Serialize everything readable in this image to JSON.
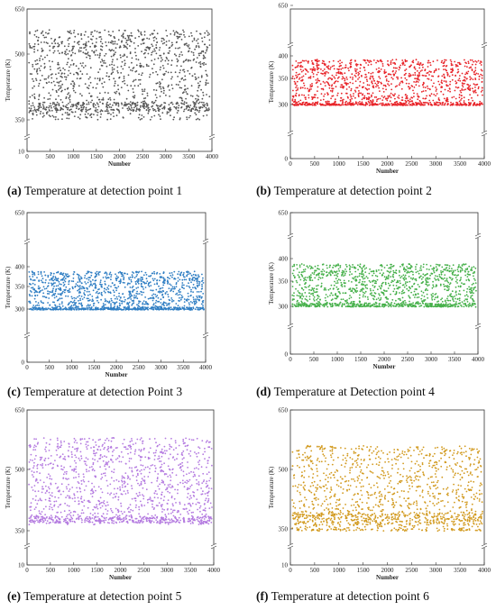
{
  "chart_data": [
    {
      "type": "scatter",
      "label": "(a)",
      "caption": "Temperature at detection point 1",
      "xlabel": "Number",
      "ylabel": "Temperature (K)",
      "xlim": [
        0,
        4000
      ],
      "xticks": [
        "0",
        "500",
        "1000",
        "1500",
        "2000",
        "2500",
        "3000",
        "3500",
        "4000"
      ],
      "yticks": [
        "10",
        "350",
        "500",
        "650"
      ],
      "y_axis_break": true,
      "color": "#555555",
      "series": [
        {
          "n_points": 4000,
          "value_band": [
            350,
            580
          ],
          "dense_band": [
            370,
            390
          ]
        }
      ]
    },
    {
      "type": "scatter",
      "label": "(b)",
      "caption": "Temperature at detection point 2",
      "xlabel": "Number",
      "ylabel": "Temperature (K)",
      "xlim": [
        0,
        4000
      ],
      "xticks": [
        "0",
        "500",
        "1000",
        "1500",
        "2000",
        "2500",
        "3000",
        "3500",
        "4000"
      ],
      "yticks": [
        "0",
        "300",
        "350",
        "400",
        "650"
      ],
      "y_axis_break": true,
      "color": "#e8252a",
      "series": [
        {
          "n_points": 4000,
          "value_band": [
            295,
            392
          ],
          "dense_band": [
            296,
            304
          ]
        }
      ]
    },
    {
      "type": "scatter",
      "label": "(c)",
      "caption": "Temperature at detection Point 3",
      "xlabel": "Number",
      "ylabel": "Temperature (K)",
      "xlim": [
        0,
        4000
      ],
      "xticks": [
        "0",
        "500",
        "1000",
        "1500",
        "2000",
        "2500",
        "3000",
        "3500",
        "4000"
      ],
      "yticks": [
        "0",
        "300",
        "350",
        "400",
        "650"
      ],
      "y_axis_break": true,
      "color": "#2f7ec3",
      "series": [
        {
          "n_points": 4000,
          "value_band": [
            295,
            388
          ],
          "dense_band": [
            296,
            304
          ]
        }
      ]
    },
    {
      "type": "scatter",
      "label": "(d)",
      "caption": "Temperature at Detection point 4",
      "xlabel": "Number",
      "ylabel": "Temperature (K)",
      "xlim": [
        0,
        4000
      ],
      "xticks": [
        "0",
        "500",
        "1000",
        "1500",
        "2000",
        "2500",
        "3000",
        "3500",
        "4000"
      ],
      "yticks": [
        "0",
        "300",
        "350",
        "400",
        "650"
      ],
      "y_axis_break": true,
      "color": "#46b04a",
      "series": [
        {
          "n_points": 4000,
          "value_band": [
            296,
            388
          ],
          "dense_band": [
            298,
            306
          ]
        }
      ]
    },
    {
      "type": "scatter",
      "label": "(e)",
      "caption": "Temperature at detection point 5",
      "xlabel": "Number",
      "ylabel": "Temperature (K)",
      "xlim": [
        0,
        4000
      ],
      "xticks": [
        "0",
        "500",
        "1000",
        "1500",
        "2000",
        "2500",
        "3000",
        "3500",
        "4000"
      ],
      "yticks": [
        "10",
        "350",
        "500",
        "650"
      ],
      "y_axis_break": true,
      "color": "#b47be0",
      "series": [
        {
          "n_points": 4000,
          "value_band": [
            365,
            580
          ],
          "dense_band": [
            368,
            385
          ]
        }
      ]
    },
    {
      "type": "scatter",
      "label": "(f)",
      "caption": "Temperature at detection point 6",
      "xlabel": "Number",
      "ylabel": "Temperature (K)",
      "xlim": [
        0,
        4000
      ],
      "xticks": [
        "0",
        "500",
        "1000",
        "1500",
        "2000",
        "2500",
        "3000",
        "3500",
        "4000"
      ],
      "yticks": [
        "10",
        "350",
        "500",
        "650"
      ],
      "y_axis_break": true,
      "color": "#d29a1f",
      "series": [
        {
          "n_points": 4000,
          "value_band": [
            330,
            560
          ],
          "dense_band": [
            360,
            390
          ]
        }
      ]
    }
  ]
}
